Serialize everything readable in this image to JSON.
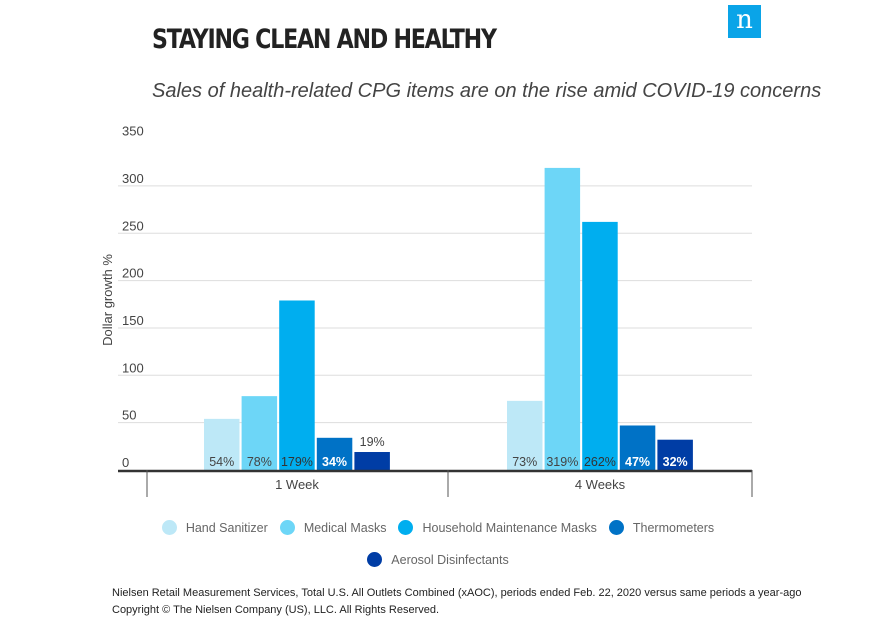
{
  "title": "STAYING CLEAN AND HEALTHY",
  "subtitle": "Sales of health-related CPG items are on the rise amid COVID-19 concerns",
  "logo": "n",
  "chart_data": {
    "type": "bar",
    "ylabel": "Dollar growth %",
    "ylim": [
      0,
      350
    ],
    "yticks": [
      0,
      50,
      100,
      150,
      200,
      250,
      300,
      350
    ],
    "grid": true,
    "legend_position": "bottom",
    "categories": [
      "1 Week",
      "4 Weeks"
    ],
    "series": [
      {
        "name": "Hand Sanitizer",
        "color": "#bde8f7",
        "label_color": "#444",
        "values": [
          54,
          73
        ],
        "labels": [
          "54%",
          "73%"
        ]
      },
      {
        "name": "Medical Masks",
        "color": "#6dd6f7",
        "label_color": "#444",
        "values": [
          78,
          319
        ],
        "labels": [
          "78%",
          "319%"
        ]
      },
      {
        "name": "Household Maintenance Masks",
        "color": "#00aeef",
        "label_color": "#333",
        "values": [
          179,
          262
        ],
        "labels": [
          "179%",
          "262%"
        ]
      },
      {
        "name": "Thermometers",
        "color": "#0072c6",
        "label_color": "#fff",
        "values": [
          34,
          47
        ],
        "labels": [
          "34%",
          "47%"
        ]
      },
      {
        "name": "Aerosol Disinfectants",
        "color": "#003da5",
        "label_color": "#fff",
        "values": [
          19,
          32
        ],
        "labels": [
          "19%",
          "32%"
        ]
      }
    ]
  },
  "footer": {
    "source": "Nielsen Retail Measurement Services, Total U.S. All Outlets Combined (xAOC), periods ended Feb. 22, 2020 versus same periods a year-ago",
    "copyright": "Copyright © The Nielsen Company (US), LLC. All Rights Reserved."
  }
}
